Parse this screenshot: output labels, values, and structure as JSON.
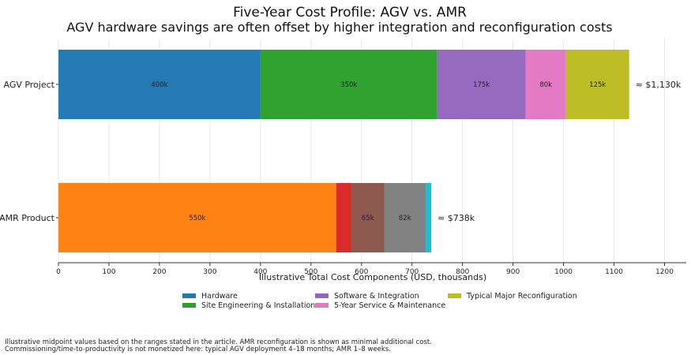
{
  "chart_data": {
    "type": "bar",
    "orientation": "horizontal",
    "stacked": true,
    "title": "Five-Year Cost Profile: AGV vs. AMR",
    "subtitle": "AGV hardware savings are often offset by higher integration and reconfiguration costs",
    "xlabel": "Illustrative Total Cost Components (USD, thousands)",
    "ylabel": "",
    "xlim": [
      0,
      1243
    ],
    "xticks": [
      0,
      100,
      200,
      300,
      400,
      500,
      600,
      700,
      800,
      900,
      1000,
      1100,
      1200
    ],
    "grid": "x",
    "categories": [
      "AGV Project",
      "AMR Product"
    ],
    "bars": [
      {
        "category": "AGV Project",
        "total_label": "≈ $1,130k",
        "segments": [
          {
            "name": "Hardware",
            "value": 400,
            "label": "400k",
            "color": "#1f77b4"
          },
          {
            "name": "Site Engineering & Installation",
            "value": 350,
            "label": "350k",
            "color": "#2ca02c"
          },
          {
            "name": "Software & Integration",
            "value": 175,
            "label": "175k",
            "color": "#9467bd"
          },
          {
            "name": "5-Year Service & Maintenance",
            "value": 80,
            "label": "80k",
            "color": "#e377c2"
          },
          {
            "name": "Typical Major Reconfiguration",
            "value": 125,
            "label": "125k",
            "color": "#bcbd22"
          }
        ]
      },
      {
        "category": "AMR Product",
        "total_label": "≈ $738k",
        "segments": [
          {
            "name": "Hardware",
            "value": 550,
            "label": "550k",
            "color": "#ff7f0e"
          },
          {
            "name": "Site Engineering & Installation",
            "value": 30,
            "label": "",
            "color": "#d62728"
          },
          {
            "name": "Software & Integration",
            "value": 65,
            "label": "65k",
            "color": "#8c564b"
          },
          {
            "name": "5-Year Service & Maintenance",
            "value": 82,
            "label": "82k",
            "color": "#7f7f7f"
          },
          {
            "name": "Typical Major Reconfiguration",
            "value": 11,
            "label": "",
            "color": "#17becf"
          }
        ]
      }
    ],
    "legend": {
      "placement": "bottom-center",
      "entries": [
        {
          "label": "Hardware",
          "color": "#1f77b4"
        },
        {
          "label": "Site Engineering & Installation",
          "color": "#2ca02c"
        },
        {
          "label": "Software & Integration",
          "color": "#9467bd"
        },
        {
          "label": "5-Year Service & Maintenance",
          "color": "#e377c2"
        },
        {
          "label": "Typical Major Reconfiguration",
          "color": "#bcbd22"
        }
      ]
    }
  },
  "footnote": [
    "Illustrative midpoint values based on the ranges stated in the article. AMR reconfiguration is shown as minimal additional cost.",
    "Commissioning/time-to-productivity is not monetized here: typical AGV deployment 4–18 months; AMR 1–8 weeks."
  ]
}
